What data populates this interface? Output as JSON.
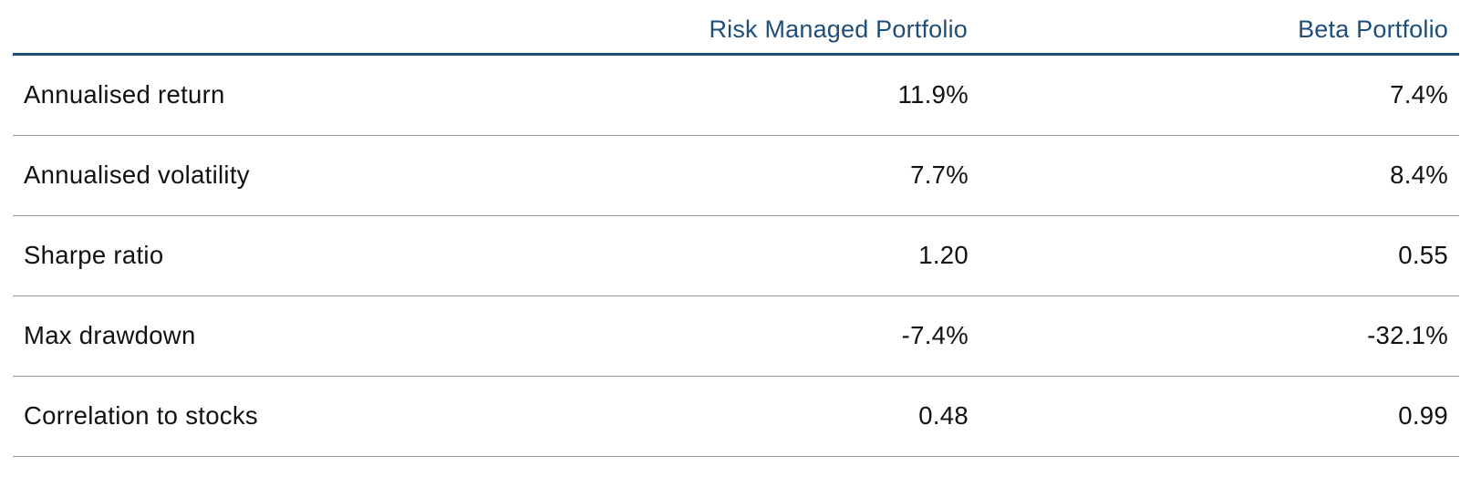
{
  "table": {
    "columns": [
      "",
      "Risk Managed Portfolio",
      "Beta Portfolio"
    ],
    "rows": [
      {
        "metric": "Annualised return",
        "risk_managed": "11.9%",
        "beta": "7.4%"
      },
      {
        "metric": "Annualised volatility",
        "risk_managed": "7.7%",
        "beta": "8.4%"
      },
      {
        "metric": "Sharpe ratio",
        "risk_managed": "1.20",
        "beta": "0.55"
      },
      {
        "metric": "Max drawdown",
        "risk_managed": "-7.4%",
        "beta": "-32.1%"
      },
      {
        "metric": "Correlation to stocks",
        "risk_managed": "0.48",
        "beta": "0.99"
      }
    ]
  },
  "colors": {
    "header_text": "#1f4e79",
    "header_rule": "#1f4e79",
    "row_rule": "#9a9a9a",
    "body_text": "#111111"
  }
}
